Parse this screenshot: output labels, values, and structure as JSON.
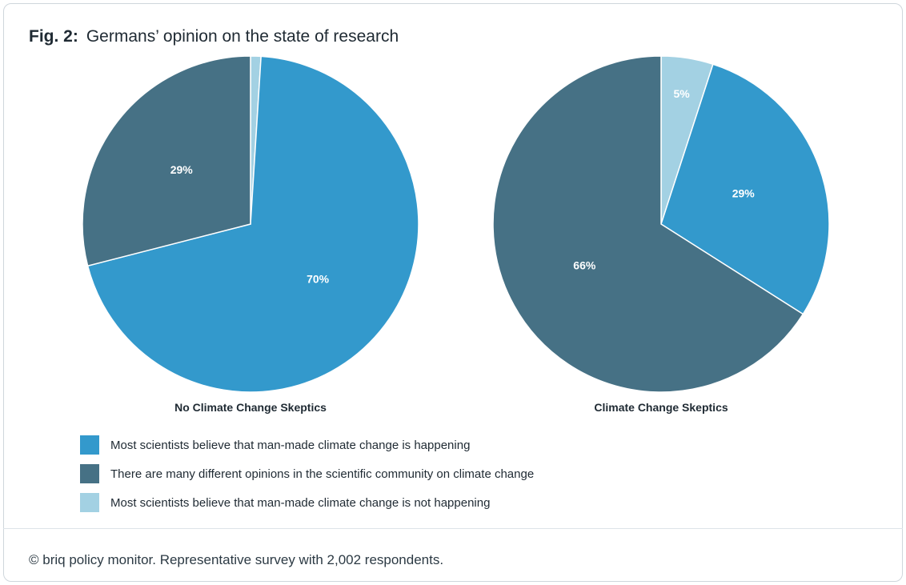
{
  "figure": {
    "number": "Fig. 2:",
    "title": "Germans’ opinion on the state of research"
  },
  "colors": {
    "believe_happening": "#3399cc",
    "different_opinions": "#467185",
    "believe_not_happening": "#a3d1e3"
  },
  "chart_data": [
    {
      "type": "pie",
      "title": "No Climate Change Skeptics",
      "slices": [
        {
          "key": "believe_not_happening",
          "value": 1,
          "label": ""
        },
        {
          "key": "believe_happening",
          "value": 70,
          "label": "70%"
        },
        {
          "key": "different_opinions",
          "value": 29,
          "label": "29%"
        }
      ]
    },
    {
      "type": "pie",
      "title": "Climate Change Skeptics",
      "slices": [
        {
          "key": "believe_not_happening",
          "value": 5,
          "label": "5%"
        },
        {
          "key": "believe_happening",
          "value": 29,
          "label": "29%"
        },
        {
          "key": "different_opinions",
          "value": 66,
          "label": "66%"
        }
      ]
    }
  ],
  "legend": [
    {
      "key": "believe_happening",
      "label": "Most scientists believe that man-made climate change is happening"
    },
    {
      "key": "different_opinions",
      "label": "There are many different opinions in the scientific community on climate change"
    },
    {
      "key": "believe_not_happening",
      "label": "Most scientists believe that man-made climate change is not happening"
    }
  ],
  "source": "© briq policy monitor. Representative survey with 2,002 respondents."
}
